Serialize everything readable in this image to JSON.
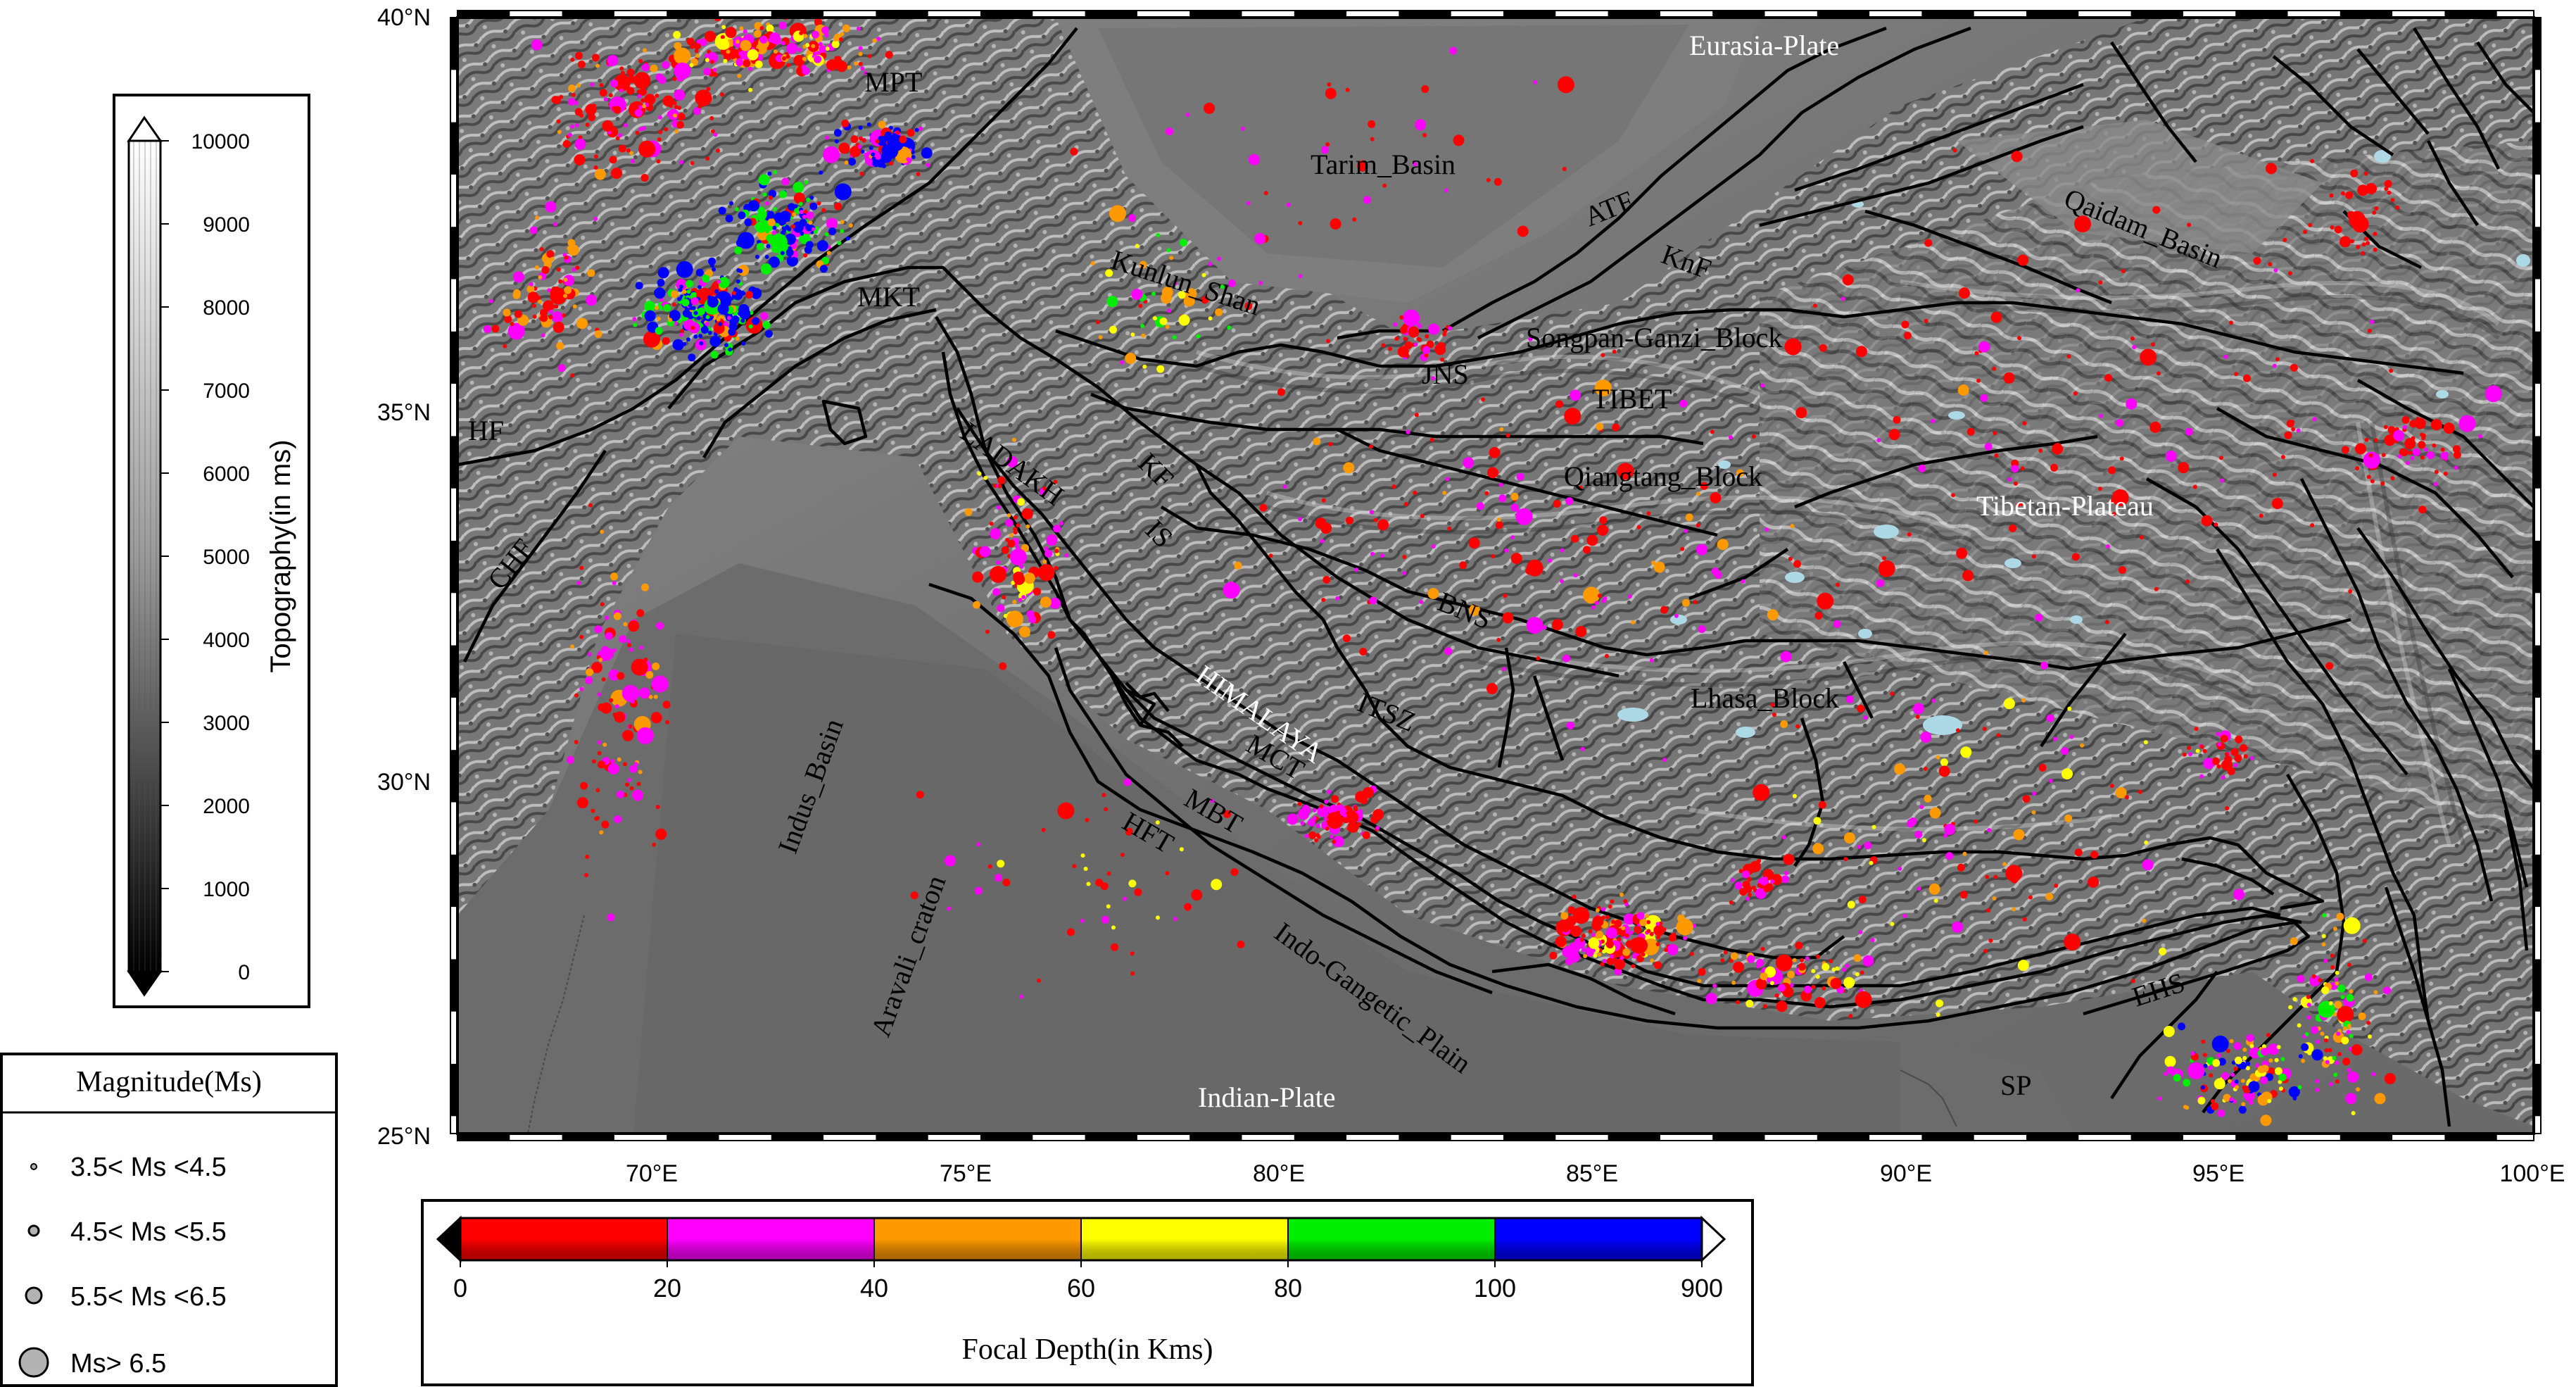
{
  "map": {
    "lat_ticks": [
      "40°N",
      "35°N",
      "30°N",
      "25°N"
    ],
    "lon_ticks": [
      "70°E",
      "75°E",
      "80°E",
      "85°E",
      "90°E",
      "95°E",
      "100°E"
    ],
    "labels": [
      {
        "id": "eurasia",
        "text": "Eurasia-Plate",
        "style": "white"
      },
      {
        "id": "tarim",
        "text": "Tarim_Basin",
        "style": "dark"
      },
      {
        "id": "atf",
        "text": "ATF",
        "style": "dark"
      },
      {
        "id": "knf",
        "text": "KnF",
        "style": "dark"
      },
      {
        "id": "qaidam",
        "text": "Qaidam_Basin",
        "style": "dark"
      },
      {
        "id": "mpt",
        "text": "MPT",
        "style": "dark"
      },
      {
        "id": "kunlun",
        "text": "Kunlun_Shan",
        "style": "dark"
      },
      {
        "id": "songpan",
        "text": "Songpan-Ganzi_Block",
        "style": "dark"
      },
      {
        "id": "jns",
        "text": "JNS",
        "style": "dark"
      },
      {
        "id": "tibet",
        "text": "TIBET",
        "style": "dark"
      },
      {
        "id": "mkt",
        "text": "MKT",
        "style": "dark"
      },
      {
        "id": "hf",
        "text": "HF",
        "style": "dark"
      },
      {
        "id": "chf",
        "text": "CHF",
        "style": "dark"
      },
      {
        "id": "ladakh",
        "text": "LADAKH",
        "style": "dark"
      },
      {
        "id": "kf",
        "text": "KF",
        "style": "dark"
      },
      {
        "id": "is",
        "text": "IS",
        "style": "dark"
      },
      {
        "id": "qiangtang",
        "text": "Qiangtang_Block",
        "style": "dark"
      },
      {
        "id": "tibetan_plateau",
        "text": "Tibetan-Plateau",
        "style": "white"
      },
      {
        "id": "bns",
        "text": "BNS",
        "style": "dark"
      },
      {
        "id": "himalaya",
        "text": "HIMALAYA",
        "style": "white"
      },
      {
        "id": "itsz",
        "text": "ITSZ",
        "style": "dark"
      },
      {
        "id": "lhasa",
        "text": "Lhasa_Block",
        "style": "dark"
      },
      {
        "id": "mct",
        "text": "MCT",
        "style": "dark"
      },
      {
        "id": "mbt",
        "text": "MBT",
        "style": "dark"
      },
      {
        "id": "hft",
        "text": "HFT",
        "style": "dark"
      },
      {
        "id": "indus",
        "text": "Indus_Basin",
        "style": "dark"
      },
      {
        "id": "aravali",
        "text": "Aravali_craton",
        "style": "dark"
      },
      {
        "id": "indo_gangetic",
        "text": "Indo-Gangetic_Plain",
        "style": "dark"
      },
      {
        "id": "indian_plate",
        "text": "Indian-Plate",
        "style": "white"
      },
      {
        "id": "ehs",
        "text": "EHS",
        "style": "dark"
      },
      {
        "id": "sp",
        "text": "SP",
        "style": "dark"
      }
    ]
  },
  "topography_scale": {
    "label": "Topography(in ms)",
    "ticks": [
      "10000",
      "9000",
      "8000",
      "7000",
      "6000",
      "5000",
      "4000",
      "3000",
      "2000",
      "1000",
      "0"
    ],
    "colors": {
      "top": "#ffffff",
      "bottom": "#000000"
    }
  },
  "magnitude_legend": {
    "title": "Magnitude(Ms)",
    "items": [
      {
        "label": "3.5< Ms <4.5",
        "size": "small"
      },
      {
        "label": "4.5< Ms <5.5",
        "size": "medium"
      },
      {
        "label": "5.5< Ms <6.5",
        "size": "large"
      },
      {
        "label": "Ms> 6.5",
        "size": "xlarge"
      }
    ]
  },
  "depth_scale": {
    "label": "Focal Depth(in Kms)",
    "ticks": [
      "0",
      "20",
      "40",
      "60",
      "80",
      "100",
      "900"
    ],
    "colors": [
      "#ff0000",
      "#ff00ff",
      "#ff9900",
      "#ffff00",
      "#00ee00",
      "#0000ff"
    ]
  },
  "colors": {
    "terrain_dark": "#5e5e5e",
    "terrain_light": "#a9a9a9",
    "lake": "#add8e6",
    "fault": "#000000"
  }
}
